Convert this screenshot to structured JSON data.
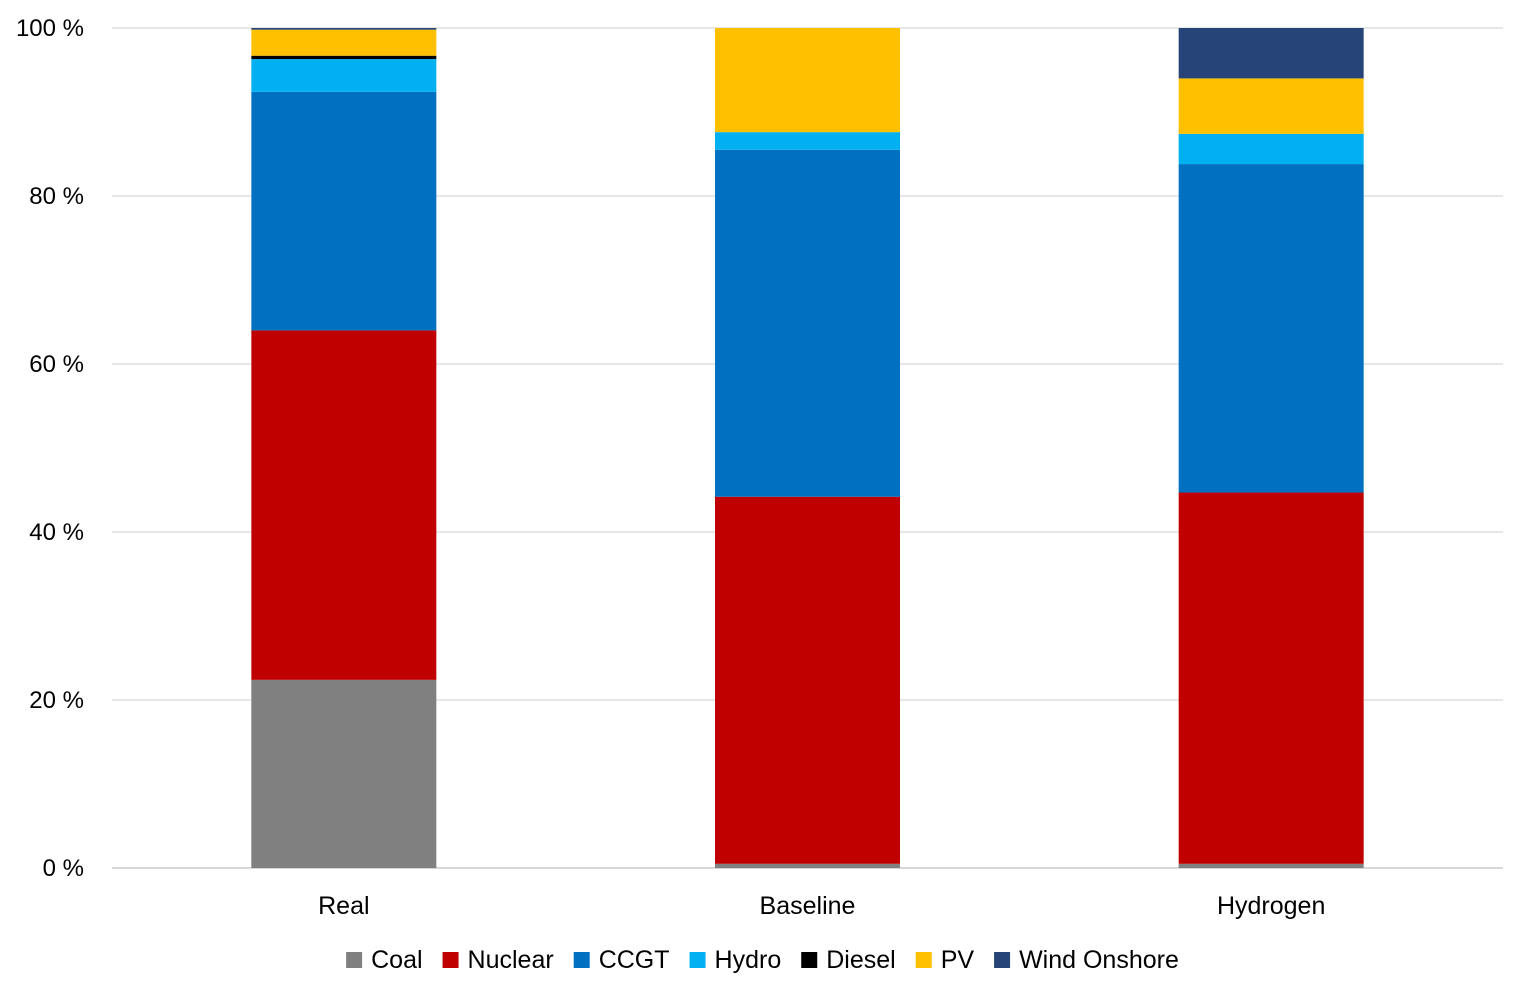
{
  "chart_data": {
    "type": "bar",
    "stacked": true,
    "categories": [
      "Real",
      "Baseline",
      "Hydrogen"
    ],
    "series": [
      {
        "name": "Coal",
        "color": "#808080",
        "values": [
          22.4,
          0.5,
          0.5
        ]
      },
      {
        "name": "Nuclear",
        "color": "#C00000",
        "values": [
          41.6,
          43.7,
          44.2
        ]
      },
      {
        "name": "CCGT",
        "color": "#0070C0",
        "values": [
          28.4,
          41.3,
          39.1
        ]
      },
      {
        "name": "Hydro",
        "color": "#00B0F0",
        "values": [
          3.9,
          2.1,
          3.6
        ]
      },
      {
        "name": "Diesel",
        "color": "#000000",
        "values": [
          0.4,
          0.0,
          0.0
        ]
      },
      {
        "name": "PV",
        "color": "#FFC000",
        "values": [
          3.1,
          12.4,
          6.6
        ]
      },
      {
        "name": "Wind Onshore",
        "color": "#264478",
        "values": [
          0.2,
          0.0,
          6.0
        ]
      }
    ],
    "ylim": [
      0,
      100
    ],
    "y_ticks": [
      {
        "value": 0,
        "label": "0 %"
      },
      {
        "value": 20,
        "label": "20 %"
      },
      {
        "value": 40,
        "label": "40 %"
      },
      {
        "value": 60,
        "label": "60 %"
      },
      {
        "value": 80,
        "label": "80 %"
      },
      {
        "value": 100,
        "label": "100 %"
      }
    ],
    "grid": true,
    "legend_position": "bottom"
  }
}
